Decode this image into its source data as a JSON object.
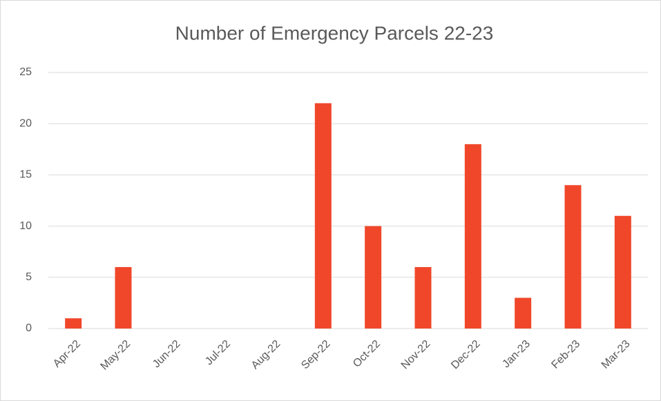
{
  "chart_data": {
    "type": "bar",
    "title": "Number of Emergency Parcels 22-23",
    "categories": [
      "Apr-22",
      "May-22",
      "Jun-22",
      "Jul-22",
      "Aug-22",
      "Sep-22",
      "Oct-22",
      "Nov-22",
      "Dec-22",
      "Jan-23",
      "Feb-23",
      "Mar-23"
    ],
    "values": [
      1,
      6,
      0,
      0,
      0,
      22,
      10,
      6,
      18,
      3,
      14,
      11
    ],
    "color": "#f0472a",
    "ylim": [
      0,
      25
    ],
    "yticks": [
      0,
      5,
      10,
      15,
      20,
      25
    ],
    "grid": true
  }
}
